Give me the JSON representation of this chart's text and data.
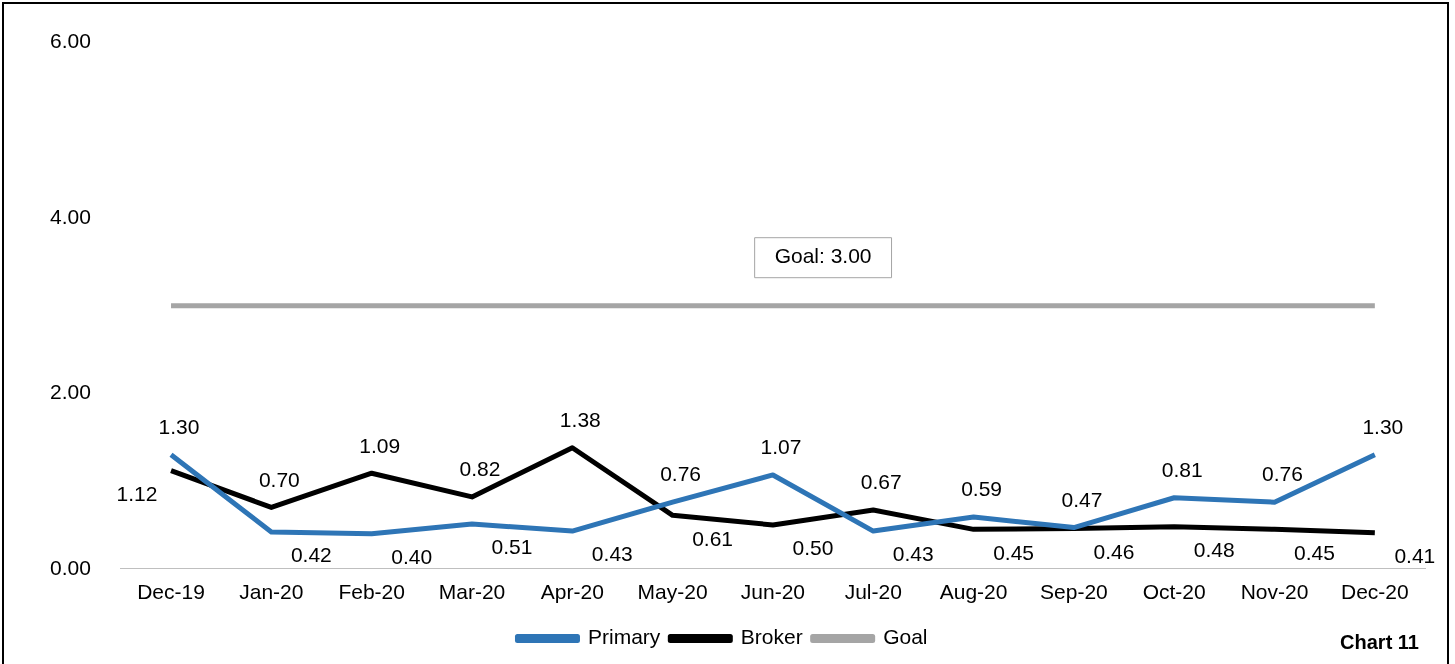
{
  "chart_data": {
    "type": "line",
    "categories": [
      "Dec-19",
      "Jan-20",
      "Feb-20",
      "Mar-20",
      "Apr-20",
      "May-20",
      "Jun-20",
      "Jul-20",
      "Aug-20",
      "Sep-20",
      "Oct-20",
      "Nov-20",
      "Dec-20"
    ],
    "series": [
      {
        "name": "Primary",
        "color": "#2e75b6",
        "values": [
          1.3,
          0.42,
          0.4,
          0.51,
          0.43,
          0.76,
          1.07,
          0.43,
          0.59,
          0.47,
          0.81,
          0.76,
          1.3
        ],
        "value_labels": [
          "1.30",
          "0.42",
          "0.40",
          "0.51",
          "0.43",
          "0.76",
          "1.07",
          "0.43",
          "0.59",
          "0.47",
          "0.81",
          "0.76",
          "1.30"
        ]
      },
      {
        "name": "Broker",
        "color": "#000000",
        "values": [
          1.12,
          0.7,
          1.09,
          0.82,
          1.38,
          0.61,
          0.5,
          0.67,
          0.45,
          0.46,
          0.48,
          0.45,
          0.41
        ],
        "value_labels": [
          "1.12",
          "0.70",
          "1.09",
          "0.82",
          "1.38",
          "0.61",
          "0.50",
          "0.67",
          "0.45",
          "0.46",
          "0.48",
          "0.45",
          "0.41"
        ]
      },
      {
        "name": "Goal",
        "color": "#a5a5a5",
        "values": [
          3,
          3,
          3,
          3,
          3,
          3,
          3,
          3,
          3,
          3,
          3,
          3,
          3
        ]
      }
    ],
    "ylim": [
      0,
      6
    ],
    "yticks": [
      {
        "value": 0,
        "label": "0.00"
      },
      {
        "value": 2,
        "label": "2.00"
      },
      {
        "value": 4,
        "label": "4.00"
      },
      {
        "value": 6,
        "label": "6.00"
      }
    ],
    "grid": false,
    "legend": "bottom",
    "marker": "none",
    "line_style": "solid",
    "annotations": [
      {
        "text": "Goal: 3.00",
        "x": "Jun-20",
        "y": 3
      },
      "Chart 11"
    ]
  }
}
